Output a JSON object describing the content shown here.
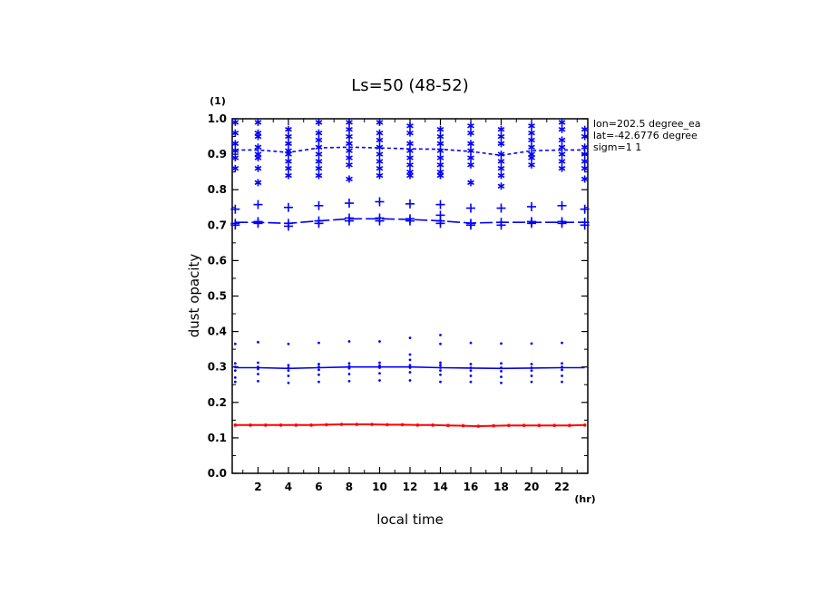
{
  "chart_data": {
    "type": "line",
    "title": "Ls=50 (48-52)",
    "xlabel": "local time",
    "ylabel": "dust opacity",
    "x_unit": "(hr)",
    "y_unit": "(1)",
    "xlim": [
      0.3,
      23.7
    ],
    "ylim": [
      0.0,
      1.0
    ],
    "x_ticks": [
      2,
      4,
      6,
      8,
      10,
      12,
      14,
      16,
      18,
      20,
      22
    ],
    "y_ticks": [
      0.0,
      0.1,
      0.2,
      0.3,
      0.4,
      0.5,
      0.6,
      0.7,
      0.8,
      0.9,
      1.0
    ],
    "grid": false,
    "info": [
      "lon=202.5 degree_ea",
      "lat=-42.6776 degree",
      "sigm=1 1"
    ],
    "colors": {
      "blue": "#0000ff",
      "red": "#ff0000"
    },
    "mean_lines": [
      {
        "style": "short-dash",
        "color": "#0000ff",
        "x": [
          0.5,
          2,
          4,
          6,
          8,
          10,
          12,
          14,
          16,
          18,
          20,
          22,
          23.5
        ],
        "y": [
          0.912,
          0.912,
          0.905,
          0.918,
          0.92,
          0.918,
          0.915,
          0.914,
          0.908,
          0.897,
          0.91,
          0.912,
          0.912
        ]
      },
      {
        "style": "long-dash",
        "color": "#0000ff",
        "x": [
          0.5,
          2,
          4,
          6,
          8,
          10,
          12,
          14,
          16,
          18,
          20,
          22,
          23.5
        ],
        "y": [
          0.708,
          0.708,
          0.705,
          0.712,
          0.718,
          0.718,
          0.716,
          0.712,
          0.706,
          0.708,
          0.708,
          0.708,
          0.708
        ]
      },
      {
        "style": "solid",
        "color": "#0000ff",
        "x": [
          0.5,
          2,
          4,
          6,
          8,
          10,
          12,
          14,
          16,
          18,
          20,
          22,
          23.5
        ],
        "y": [
          0.298,
          0.298,
          0.296,
          0.298,
          0.3,
          0.3,
          0.3,
          0.298,
          0.297,
          0.296,
          0.297,
          0.298,
          0.298
        ]
      },
      {
        "style": "solid-dots",
        "color": "#ff0000",
        "x": [
          0.5,
          1.5,
          2.5,
          3.5,
          4.5,
          5.5,
          6.5,
          7.5,
          8.5,
          9.5,
          10.5,
          11.5,
          12.5,
          13.5,
          14.5,
          15.5,
          16.5,
          17.5,
          18.5,
          19.5,
          20.5,
          21.5,
          22.5,
          23.5
        ],
        "y": [
          0.136,
          0.136,
          0.136,
          0.136,
          0.136,
          0.136,
          0.137,
          0.138,
          0.138,
          0.138,
          0.137,
          0.137,
          0.136,
          0.136,
          0.135,
          0.134,
          0.133,
          0.134,
          0.135,
          0.135,
          0.135,
          0.135,
          0.135,
          0.136
        ]
      }
    ],
    "samples": [
      {
        "marker": "asterisk",
        "color": "#0000ff",
        "points": [
          [
            0.5,
            [
              0.99,
              0.96,
              0.93,
              0.91,
              0.89,
              0.86
            ]
          ],
          [
            2,
            [
              0.99,
              0.96,
              0.95,
              0.92,
              0.9,
              0.89,
              0.86,
              0.82
            ]
          ],
          [
            4,
            [
              0.97,
              0.95,
              0.93,
              0.91,
              0.9,
              0.88,
              0.86,
              0.84
            ]
          ],
          [
            6,
            [
              0.99,
              0.96,
              0.94,
              0.92,
              0.9,
              0.88,
              0.86,
              0.84
            ]
          ],
          [
            8,
            [
              0.99,
              0.97,
              0.95,
              0.93,
              0.91,
              0.89,
              0.87,
              0.83
            ]
          ],
          [
            10,
            [
              0.99,
              0.96,
              0.94,
              0.92,
              0.9,
              0.88,
              0.86,
              0.84
            ]
          ],
          [
            12,
            [
              0.98,
              0.96,
              0.93,
              0.91,
              0.89,
              0.87,
              0.85,
              0.84
            ]
          ],
          [
            14,
            [
              0.97,
              0.95,
              0.93,
              0.91,
              0.89,
              0.87,
              0.85,
              0.84
            ]
          ],
          [
            16,
            [
              0.98,
              0.96,
              0.93,
              0.91,
              0.89,
              0.87,
              0.82
            ]
          ],
          [
            18,
            [
              0.97,
              0.95,
              0.93,
              0.9,
              0.88,
              0.86,
              0.84,
              0.81
            ]
          ],
          [
            20,
            [
              0.98,
              0.96,
              0.94,
              0.92,
              0.9,
              0.89,
              0.87
            ]
          ],
          [
            22,
            [
              0.99,
              0.97,
              0.94,
              0.92,
              0.9,
              0.88,
              0.86
            ]
          ],
          [
            23.5,
            [
              0.97,
              0.95,
              0.92,
              0.9,
              0.88,
              0.86,
              0.83
            ]
          ]
        ]
      },
      {
        "marker": "plus",
        "color": "#0000ff",
        "points": [
          [
            0.5,
            [
              0.745,
              0.705,
              0.7
            ]
          ],
          [
            2,
            [
              0.758,
              0.71,
              0.705
            ]
          ],
          [
            4,
            [
              0.75,
              0.705,
              0.697
            ]
          ],
          [
            6,
            [
              0.755,
              0.712,
              0.705
            ]
          ],
          [
            8,
            [
              0.762,
              0.72,
              0.712
            ]
          ],
          [
            10,
            [
              0.766,
              0.72,
              0.712
            ]
          ],
          [
            12,
            [
              0.76,
              0.718,
              0.712
            ]
          ],
          [
            14,
            [
              0.758,
              0.728,
              0.712,
              0.705
            ]
          ],
          [
            16,
            [
              0.748,
              0.705,
              0.7
            ]
          ],
          [
            18,
            [
              0.748,
              0.708,
              0.7
            ]
          ],
          [
            20,
            [
              0.752,
              0.71,
              0.705
            ]
          ],
          [
            22,
            [
              0.755,
              0.71,
              0.705
            ]
          ],
          [
            23.5,
            [
              0.745,
              0.708,
              0.7
            ]
          ]
        ]
      },
      {
        "marker": "dot",
        "color": "#0000ff",
        "points": [
          [
            0.5,
            [
              0.365,
              0.31,
              0.3,
              0.29,
              0.27,
              0.258
            ]
          ],
          [
            2,
            [
              0.37,
              0.312,
              0.3,
              0.294,
              0.28,
              0.26
            ]
          ],
          [
            4,
            [
              0.365,
              0.305,
              0.298,
              0.29,
              0.275,
              0.255
            ]
          ],
          [
            6,
            [
              0.368,
              0.308,
              0.3,
              0.292,
              0.278,
              0.258
            ]
          ],
          [
            8,
            [
              0.372,
              0.31,
              0.302,
              0.296,
              0.28,
              0.26
            ]
          ],
          [
            10,
            [
              0.372,
              0.312,
              0.304,
              0.298,
              0.282,
              0.262
            ]
          ],
          [
            12,
            [
              0.382,
              0.335,
              0.32,
              0.305,
              0.298,
              0.285,
              0.262
            ]
          ],
          [
            14,
            [
              0.39,
              0.365,
              0.312,
              0.305,
              0.298,
              0.29,
              0.278,
              0.258
            ]
          ],
          [
            16,
            [
              0.368,
              0.308,
              0.298,
              0.29,
              0.275,
              0.258
            ]
          ],
          [
            18,
            [
              0.366,
              0.31,
              0.298,
              0.288,
              0.272,
              0.255
            ]
          ],
          [
            20,
            [
              0.366,
              0.308,
              0.298,
              0.29,
              0.275,
              0.258
            ]
          ],
          [
            22,
            [
              0.368,
              0.31,
              0.3,
              0.292,
              0.275,
              0.258
            ]
          ]
        ]
      }
    ]
  }
}
